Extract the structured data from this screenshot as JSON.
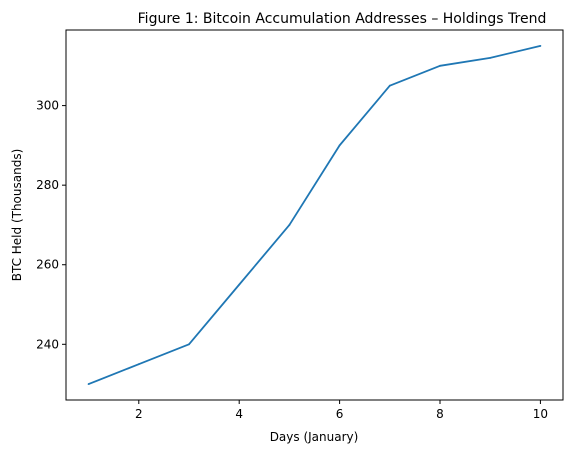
{
  "chart_data": {
    "type": "line",
    "title": "Figure 1: Bitcoin Accumulation Addresses – Holdings Trend",
    "xlabel": "Days (January)",
    "ylabel": "BTC Held (Thousands)",
    "xlim": [
      0.55,
      10.45
    ],
    "ylim": [
      226,
      319
    ],
    "xticks": [
      2,
      4,
      6,
      8,
      10
    ],
    "yticks": [
      240,
      260,
      280,
      300
    ],
    "grid": false,
    "legend": "none",
    "series": [
      {
        "color": "#1f77b4",
        "x": [
          1,
          2,
          3,
          4,
          5,
          6,
          7,
          8,
          9,
          10
        ],
        "values": [
          230,
          235,
          240,
          255,
          270,
          290,
          305,
          310,
          312,
          315
        ]
      }
    ]
  }
}
